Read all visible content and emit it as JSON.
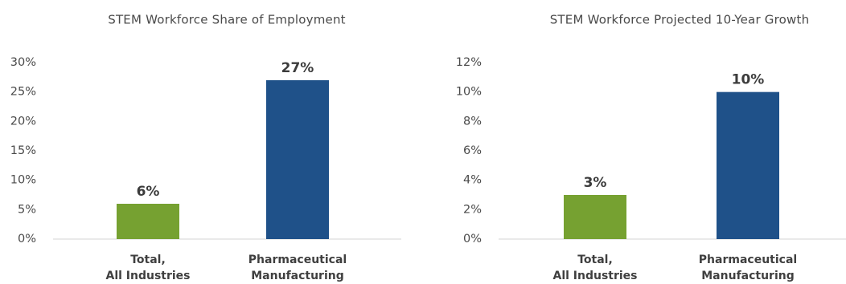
{
  "chart_data": [
    {
      "type": "bar",
      "title": "STEM Workforce Share of Employment",
      "categories": [
        [
          "Total,",
          "All Industries"
        ],
        [
          "Pharmaceutical",
          "Manufacturing"
        ]
      ],
      "values": [
        6,
        27
      ],
      "data_labels": [
        "6%",
        "27%"
      ],
      "bar_colors": [
        "#76A131",
        "#1F5189"
      ],
      "ylim": [
        0,
        30
      ],
      "yticks": [
        0,
        5,
        10,
        15,
        20,
        25,
        30
      ],
      "ytick_labels": [
        "0%",
        "5%",
        "10%",
        "15%",
        "20%",
        "25%",
        "30%"
      ],
      "xlabel": "",
      "ylabel": "",
      "grid": false
    },
    {
      "type": "bar",
      "title": "STEM Workforce Projected 10-Year Growth",
      "categories": [
        [
          "Total,",
          "All Industries"
        ],
        [
          "Pharmaceutical",
          "Manufacturing"
        ]
      ],
      "values": [
        3,
        10
      ],
      "data_labels": [
        "3%",
        "10%"
      ],
      "bar_colors": [
        "#76A131",
        "#1F5189"
      ],
      "ylim": [
        0,
        12
      ],
      "yticks": [
        0,
        2,
        4,
        6,
        8,
        10,
        12
      ],
      "ytick_labels": [
        "0%",
        "2%",
        "4%",
        "6%",
        "8%",
        "10%",
        "12%"
      ],
      "xlabel": "",
      "ylabel": "",
      "grid": false
    }
  ]
}
